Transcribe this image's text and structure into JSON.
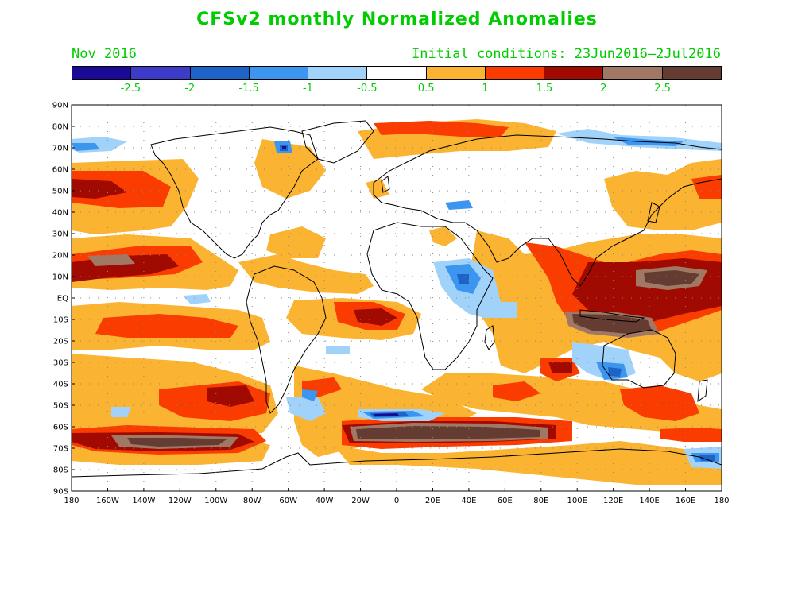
{
  "title": "CFSv2 monthly Normalized Anomalies",
  "valid_month": "Nov 2016",
  "initial_conditions": "Initial conditions: 23Jun2016–2Jul2016",
  "colorbar": {
    "colors": [
      "#1a0a96",
      "#3c3cc8",
      "#1e64c8",
      "#3c96f0",
      "#a0d2fa",
      "#ffffff",
      "#fab432",
      "#fa3c00",
      "#a00a00",
      "#a07864",
      "#643c32"
    ],
    "labels": [
      "-2.5",
      "-2",
      "-1.5",
      "-1",
      "-0.5",
      "0.5",
      "1",
      "1.5",
      "2",
      "2.5"
    ]
  },
  "map": {
    "projection": "equirectangular",
    "lat_labels": [
      "90N",
      "80N",
      "70N",
      "60N",
      "50N",
      "40N",
      "30N",
      "20N",
      "10N",
      "EQ",
      "10S",
      "20S",
      "30S",
      "40S",
      "50S",
      "60S",
      "70S",
      "80S",
      "90S"
    ],
    "lon_labels": [
      "180",
      "160W",
      "140W",
      "120W",
      "100W",
      "80W",
      "60W",
      "40W",
      "20W",
      "0",
      "20E",
      "40E",
      "60E",
      "80E",
      "100E",
      "120E",
      "140E",
      "160E",
      "180"
    ]
  }
}
